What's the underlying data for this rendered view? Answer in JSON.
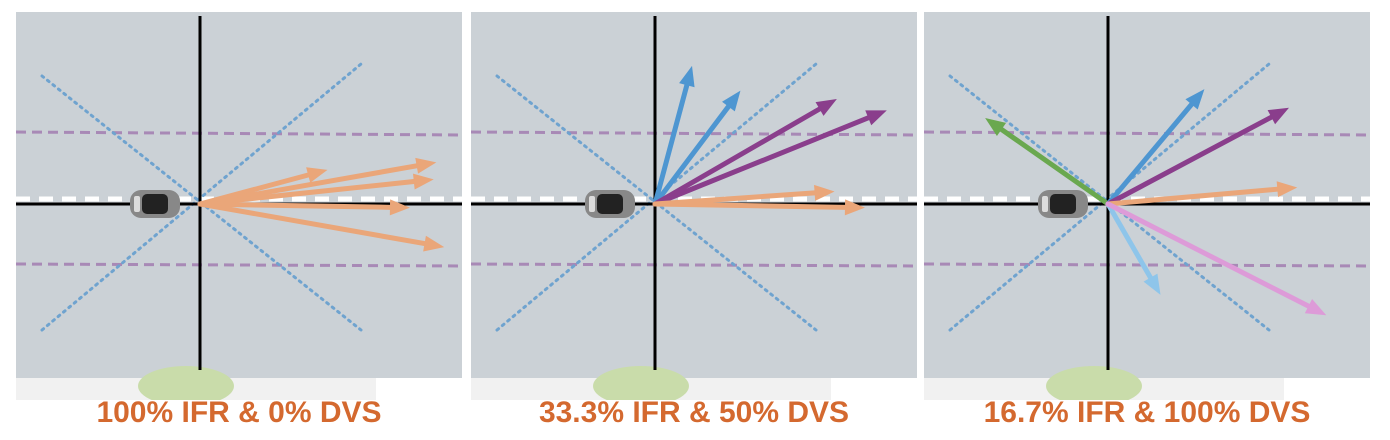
{
  "colors": {
    "caption": "#d4692f",
    "road": "#cbd1d6",
    "axis": "#000000",
    "lane_dashed": "#a889b6",
    "diag_dotted": "#6fa3cf",
    "center_line": "#ffffff",
    "orange_arrow": "#eaa679",
    "blue_arrow": "#4e96d1",
    "purple_arrow": "#8a3e8c",
    "green_arrow": "#6aa84f",
    "light_blue_arrow": "#8ec5ea",
    "pink_arrow": "#dd9bd8",
    "bush": "#c9dcaa",
    "curb": "#f1f1f1",
    "car_body": "#888888",
    "car_glass": "#222222"
  },
  "panels": [
    {
      "caption": "100% IFR & 0% DVS",
      "arrows": [
        {
          "color": "orange",
          "angle_deg": 15,
          "length": 132
        },
        {
          "color": "orange",
          "angle_deg": 10,
          "length": 240
        },
        {
          "color": "orange",
          "angle_deg": 6,
          "length": 235
        },
        {
          "color": "orange",
          "angle_deg": -1,
          "length": 210
        },
        {
          "color": "orange",
          "angle_deg": -10,
          "length": 248
        }
      ]
    },
    {
      "caption": "33.3% IFR & 50% DVS",
      "arrows": [
        {
          "color": "blue",
          "angle_deg": 75,
          "length": 143
        },
        {
          "color": "blue",
          "angle_deg": 53,
          "length": 142
        },
        {
          "color": "purple",
          "angle_deg": 30,
          "length": 210
        },
        {
          "color": "purple",
          "angle_deg": 22,
          "length": 250
        },
        {
          "color": "orange",
          "angle_deg": 4,
          "length": 180
        },
        {
          "color": "orange",
          "angle_deg": -1,
          "length": 210
        }
      ]
    },
    {
      "caption": "16.7% IFR & 100% DVS",
      "arrows": [
        {
          "color": "green",
          "angle_deg": 145,
          "length": 150
        },
        {
          "color": "blue",
          "angle_deg": 50,
          "length": 150
        },
        {
          "color": "purple",
          "angle_deg": 28,
          "length": 205
        },
        {
          "color": "orange",
          "angle_deg": 5,
          "length": 190
        },
        {
          "color": "light_blue",
          "angle_deg": -60,
          "length": 105
        },
        {
          "color": "pink",
          "angle_deg": -27,
          "length": 245
        }
      ]
    }
  ]
}
